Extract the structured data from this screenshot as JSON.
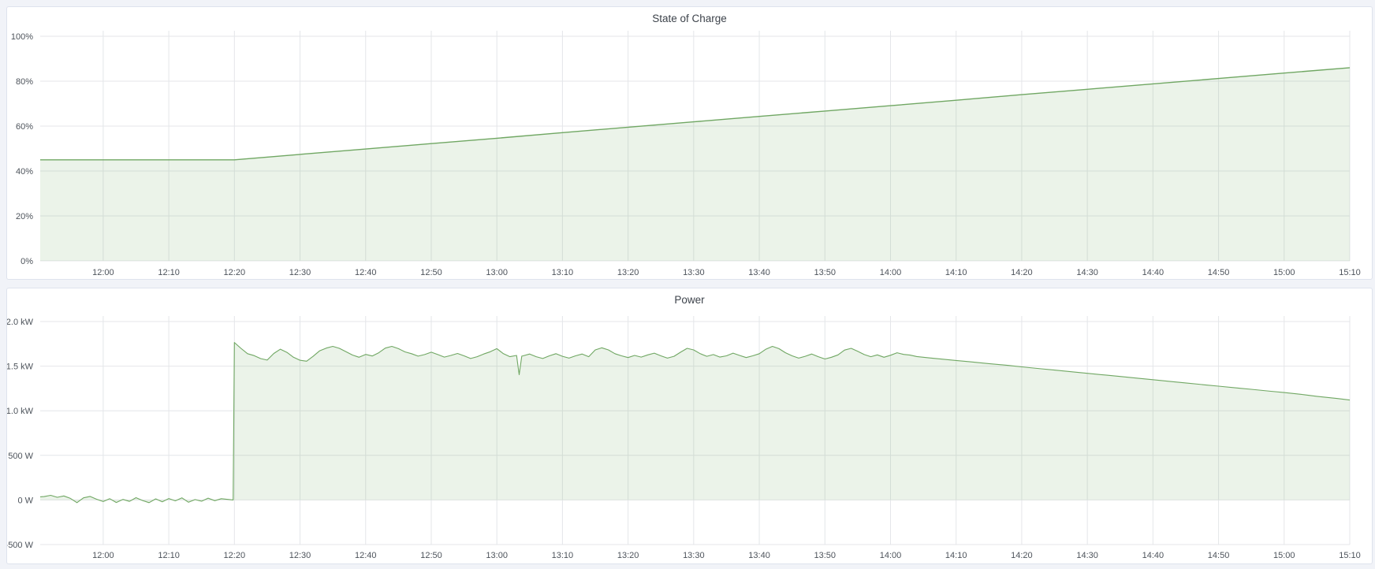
{
  "page": {
    "background_color": "#f1f3f8",
    "panel_background": "#ffffff",
    "panel_border_color": "#dee3ed",
    "grid_color": "#e4e6e9",
    "tick_text_color": "#4d535b",
    "accent_green": "#70a763"
  },
  "chart_data": [
    {
      "type": "area",
      "title": "State of Charge",
      "x_axis": {
        "min": -9.6,
        "max": 190,
        "start_time": "11:51",
        "end_time": "15:10",
        "ticks": [
          {
            "minute": 0,
            "label": "12:00"
          },
          {
            "minute": 10,
            "label": "12:10"
          },
          {
            "minute": 20,
            "label": "12:20"
          },
          {
            "minute": 30,
            "label": "12:30"
          },
          {
            "minute": 40,
            "label": "12:40"
          },
          {
            "minute": 50,
            "label": "12:50"
          },
          {
            "minute": 60,
            "label": "13:00"
          },
          {
            "minute": 70,
            "label": "13:10"
          },
          {
            "minute": 80,
            "label": "13:20"
          },
          {
            "minute": 90,
            "label": "13:30"
          },
          {
            "minute": 100,
            "label": "13:40"
          },
          {
            "minute": 110,
            "label": "13:50"
          },
          {
            "minute": 120,
            "label": "14:00"
          },
          {
            "minute": 130,
            "label": "14:10"
          },
          {
            "minute": 140,
            "label": "14:20"
          },
          {
            "minute": 150,
            "label": "14:30"
          },
          {
            "minute": 160,
            "label": "14:40"
          },
          {
            "minute": 170,
            "label": "14:50"
          },
          {
            "minute": 180,
            "label": "15:00"
          },
          {
            "minute": 190,
            "label": "15:10"
          }
        ]
      },
      "y_axis": {
        "min": 0,
        "max": 100,
        "unit": "%",
        "ticks": [
          {
            "value": 0,
            "label": "0%"
          },
          {
            "value": 20,
            "label": "20%"
          },
          {
            "value": 40,
            "label": "40%"
          },
          {
            "value": 60,
            "label": "60%"
          },
          {
            "value": 80,
            "label": "80%"
          },
          {
            "value": 100,
            "label": "100%"
          }
        ]
      },
      "grid": true,
      "legend": "none",
      "series": [
        {
          "name": "state-of-charge",
          "line_color": "#70a763",
          "fill_color": "rgba(112,167,99,0.14)",
          "line_width": 1.4,
          "fill_baseline": 0,
          "points": [
            [
              -9.6,
              45
            ],
            [
              0,
              45
            ],
            [
              10,
              45
            ],
            [
              20,
              45
            ],
            [
              30,
              47.4
            ],
            [
              40,
              49.8
            ],
            [
              50,
              52.2
            ],
            [
              60,
              54.6
            ],
            [
              70,
              57.1
            ],
            [
              80,
              59.5
            ],
            [
              90,
              61.9
            ],
            [
              100,
              64.3
            ],
            [
              110,
              66.7
            ],
            [
              120,
              69.1
            ],
            [
              130,
              71.5
            ],
            [
              140,
              74
            ],
            [
              150,
              76.4
            ],
            [
              160,
              78.8
            ],
            [
              170,
              81.2
            ],
            [
              180,
              83.6
            ],
            [
              190,
              86
            ]
          ]
        }
      ]
    },
    {
      "type": "area",
      "title": "Power",
      "x_axis": {
        "min": -9.6,
        "max": 190,
        "start_time": "11:51",
        "end_time": "15:10",
        "ticks": [
          {
            "minute": 0,
            "label": "12:00"
          },
          {
            "minute": 10,
            "label": "12:10"
          },
          {
            "minute": 20,
            "label": "12:20"
          },
          {
            "minute": 30,
            "label": "12:30"
          },
          {
            "minute": 40,
            "label": "12:40"
          },
          {
            "minute": 50,
            "label": "12:50"
          },
          {
            "minute": 60,
            "label": "13:00"
          },
          {
            "minute": 70,
            "label": "13:10"
          },
          {
            "minute": 80,
            "label": "13:20"
          },
          {
            "minute": 90,
            "label": "13:30"
          },
          {
            "minute": 100,
            "label": "13:40"
          },
          {
            "minute": 110,
            "label": "13:50"
          },
          {
            "minute": 120,
            "label": "14:00"
          },
          {
            "minute": 130,
            "label": "14:10"
          },
          {
            "minute": 140,
            "label": "14:20"
          },
          {
            "minute": 150,
            "label": "14:30"
          },
          {
            "minute": 160,
            "label": "14:40"
          },
          {
            "minute": 170,
            "label": "14:50"
          },
          {
            "minute": 180,
            "label": "15:00"
          },
          {
            "minute": 190,
            "label": "15:10"
          }
        ]
      },
      "y_axis": {
        "min": -500,
        "max": 2000,
        "unit": "W",
        "ticks": [
          {
            "value": -500,
            "label": "-500 W"
          },
          {
            "value": 0,
            "label": "0 W"
          },
          {
            "value": 500,
            "label": "500 W"
          },
          {
            "value": 1000,
            "label": "1.0 kW"
          },
          {
            "value": 1500,
            "label": "1.5 kW"
          },
          {
            "value": 2000,
            "label": "2.0 kW"
          }
        ]
      },
      "grid": true,
      "legend": "none",
      "series": [
        {
          "name": "power",
          "line_color": "#70a763",
          "fill_color": "rgba(112,167,99,0.14)",
          "line_width": 1.1,
          "fill_baseline": 0,
          "points": [
            [
              -9.6,
              35
            ],
            [
              -9,
              38
            ],
            [
              -8,
              52
            ],
            [
              -7,
              30
            ],
            [
              -6,
              45
            ],
            [
              -5,
              18
            ],
            [
              -4,
              -30
            ],
            [
              -3,
              24
            ],
            [
              -2,
              40
            ],
            [
              -1,
              8
            ],
            [
              0,
              -18
            ],
            [
              1,
              14
            ],
            [
              2,
              -28
            ],
            [
              3,
              6
            ],
            [
              4,
              -16
            ],
            [
              5,
              26
            ],
            [
              6,
              -6
            ],
            [
              7,
              -30
            ],
            [
              8,
              12
            ],
            [
              9,
              -20
            ],
            [
              10,
              16
            ],
            [
              11,
              -10
            ],
            [
              12,
              24
            ],
            [
              13,
              -26
            ],
            [
              14,
              4
            ],
            [
              15,
              -14
            ],
            [
              16,
              20
            ],
            [
              17,
              -8
            ],
            [
              18,
              14
            ],
            [
              19,
              6
            ],
            [
              19.8,
              0
            ],
            [
              20,
              1765
            ],
            [
              21,
              1700
            ],
            [
              22,
              1640
            ],
            [
              23,
              1618
            ],
            [
              24,
              1585
            ],
            [
              25,
              1568
            ],
            [
              26,
              1642
            ],
            [
              27,
              1690
            ],
            [
              28,
              1655
            ],
            [
              29,
              1600
            ],
            [
              30,
              1566
            ],
            [
              31,
              1556
            ],
            [
              32,
              1610
            ],
            [
              33,
              1672
            ],
            [
              34,
              1702
            ],
            [
              35,
              1722
            ],
            [
              36,
              1700
            ],
            [
              37,
              1662
            ],
            [
              38,
              1625
            ],
            [
              39,
              1600
            ],
            [
              40,
              1632
            ],
            [
              41,
              1614
            ],
            [
              42,
              1650
            ],
            [
              43,
              1702
            ],
            [
              44,
              1722
            ],
            [
              45,
              1696
            ],
            [
              46,
              1660
            ],
            [
              47,
              1640
            ],
            [
              48,
              1612
            ],
            [
              49,
              1630
            ],
            [
              50,
              1656
            ],
            [
              51,
              1630
            ],
            [
              52,
              1602
            ],
            [
              53,
              1620
            ],
            [
              54,
              1642
            ],
            [
              55,
              1616
            ],
            [
              56,
              1586
            ],
            [
              57,
              1606
            ],
            [
              58,
              1636
            ],
            [
              59,
              1662
            ],
            [
              60,
              1696
            ],
            [
              61,
              1640
            ],
            [
              62,
              1606
            ],
            [
              63,
              1620
            ],
            [
              63.4,
              1405
            ],
            [
              63.8,
              1612
            ],
            [
              64,
              1616
            ],
            [
              65,
              1636
            ],
            [
              66,
              1606
            ],
            [
              67,
              1586
            ],
            [
              68,
              1616
            ],
            [
              69,
              1640
            ],
            [
              70,
              1610
            ],
            [
              71,
              1590
            ],
            [
              72,
              1616
            ],
            [
              73,
              1636
            ],
            [
              74,
              1606
            ],
            [
              75,
              1682
            ],
            [
              76,
              1706
            ],
            [
              77,
              1682
            ],
            [
              78,
              1640
            ],
            [
              79,
              1616
            ],
            [
              80,
              1596
            ],
            [
              81,
              1620
            ],
            [
              82,
              1602
            ],
            [
              83,
              1626
            ],
            [
              84,
              1646
            ],
            [
              85,
              1616
            ],
            [
              86,
              1590
            ],
            [
              87,
              1610
            ],
            [
              88,
              1656
            ],
            [
              89,
              1700
            ],
            [
              90,
              1682
            ],
            [
              91,
              1640
            ],
            [
              92,
              1610
            ],
            [
              93,
              1630
            ],
            [
              94,
              1602
            ],
            [
              95,
              1616
            ],
            [
              96,
              1646
            ],
            [
              97,
              1620
            ],
            [
              98,
              1596
            ],
            [
              99,
              1616
            ],
            [
              100,
              1640
            ],
            [
              101,
              1690
            ],
            [
              102,
              1722
            ],
            [
              103,
              1696
            ],
            [
              104,
              1650
            ],
            [
              105,
              1616
            ],
            [
              106,
              1590
            ],
            [
              107,
              1610
            ],
            [
              108,
              1636
            ],
            [
              109,
              1606
            ],
            [
              110,
              1580
            ],
            [
              111,
              1600
            ],
            [
              112,
              1626
            ],
            [
              113,
              1680
            ],
            [
              114,
              1700
            ],
            [
              115,
              1666
            ],
            [
              116,
              1630
            ],
            [
              117,
              1606
            ],
            [
              118,
              1626
            ],
            [
              119,
              1600
            ],
            [
              120,
              1622
            ],
            [
              121,
              1650
            ],
            [
              122,
              1632
            ],
            [
              123,
              1624
            ],
            [
              124,
              1608
            ],
            [
              126,
              1592
            ],
            [
              128,
              1578
            ],
            [
              130,
              1564
            ],
            [
              132,
              1550
            ],
            [
              135,
              1528
            ],
            [
              138,
              1508
            ],
            [
              140,
              1492
            ],
            [
              143,
              1470
            ],
            [
              145,
              1456
            ],
            [
              148,
              1434
            ],
            [
              150,
              1420
            ],
            [
              153,
              1398
            ],
            [
              155,
              1384
            ],
            [
              158,
              1362
            ],
            [
              160,
              1348
            ],
            [
              163,
              1326
            ],
            [
              165,
              1312
            ],
            [
              168,
              1290
            ],
            [
              170,
              1276
            ],
            [
              173,
              1254
            ],
            [
              175,
              1240
            ],
            [
              178,
              1218
            ],
            [
              180,
              1204
            ],
            [
              183,
              1180
            ],
            [
              185,
              1162
            ],
            [
              188,
              1138
            ],
            [
              190,
              1120
            ]
          ]
        }
      ]
    }
  ]
}
